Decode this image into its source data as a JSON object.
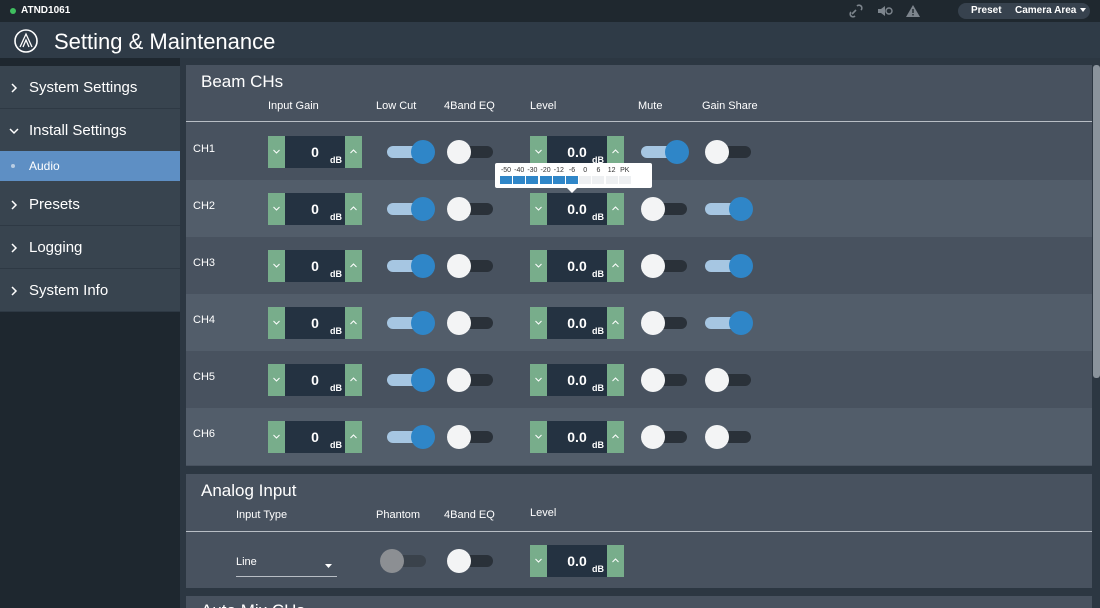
{
  "topbar": {
    "device": "ATND1061",
    "preset_button": "Preset",
    "preset_value": "Camera Area"
  },
  "header": {
    "title": "Setting & Maintenance"
  },
  "sidebar": {
    "items": [
      "System Settings",
      "Install Settings",
      "Audio",
      "Presets",
      "Logging",
      "System Info"
    ],
    "expanded": 1,
    "selected": 2
  },
  "beam_chs": {
    "title": "Beam CHs",
    "columns": [
      "Input Gain",
      "Low Cut",
      "4Band EQ",
      "Level",
      "Mute",
      "Gain Share"
    ],
    "unit": "dB",
    "rows": [
      {
        "name": "CH1",
        "input_gain": "0",
        "low_cut": true,
        "eq": false,
        "level": "0.0",
        "mute": true,
        "gain_share": false
      },
      {
        "name": "CH2",
        "input_gain": "0",
        "low_cut": true,
        "eq": false,
        "level": "0.0",
        "mute": false,
        "gain_share": true
      },
      {
        "name": "CH3",
        "input_gain": "0",
        "low_cut": true,
        "eq": false,
        "level": "0.0",
        "mute": false,
        "gain_share": true
      },
      {
        "name": "CH4",
        "input_gain": "0",
        "low_cut": true,
        "eq": false,
        "level": "0.0",
        "mute": false,
        "gain_share": true
      },
      {
        "name": "CH5",
        "input_gain": "0",
        "low_cut": true,
        "eq": false,
        "level": "0.0",
        "mute": false,
        "gain_share": false
      },
      {
        "name": "CH6",
        "input_gain": "0",
        "low_cut": true,
        "eq": false,
        "level": "0.0",
        "mute": false,
        "gain_share": false
      }
    ],
    "meter": {
      "scale": [
        "-50",
        "-40",
        "-30",
        "-20",
        "-12",
        "-6",
        "0",
        "6",
        "12",
        "PK"
      ],
      "lit": 6
    }
  },
  "analog_input": {
    "title": "Analog Input",
    "columns": [
      "Input Type",
      "Phantom",
      "4Band EQ",
      "Level"
    ],
    "input_type": "Line",
    "phantom": false,
    "phantom_enabled": false,
    "eq": false,
    "level": "0.0",
    "unit": "dB"
  },
  "auto_mix": {
    "title": "Auto Mix CHs"
  }
}
